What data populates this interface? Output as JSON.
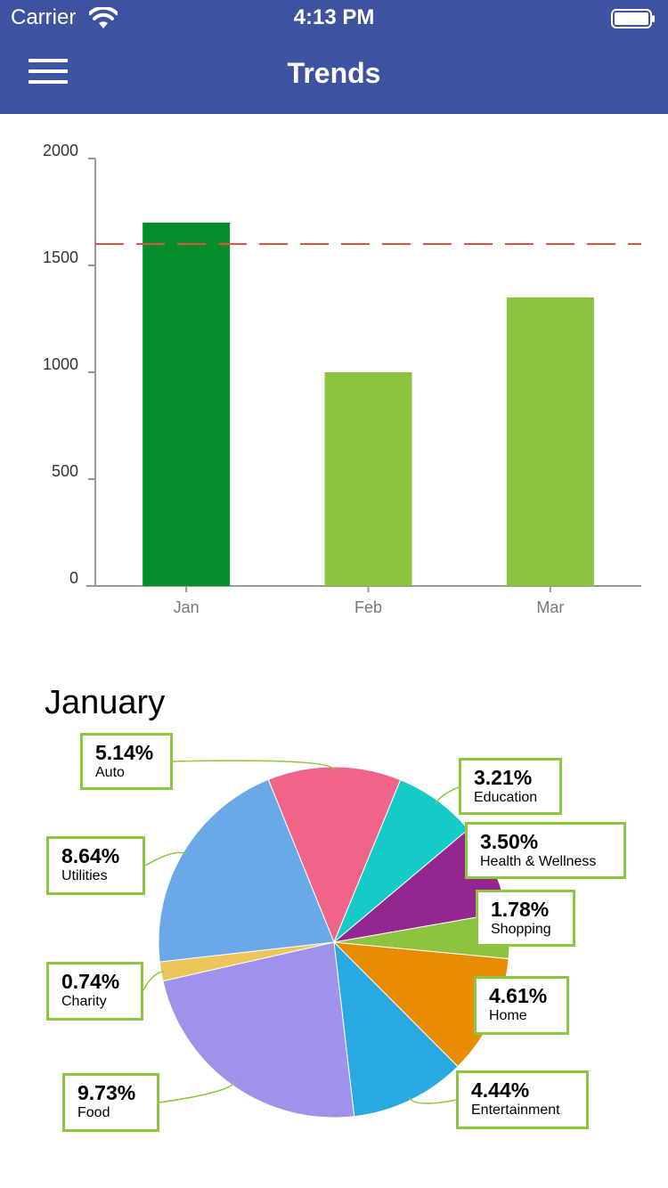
{
  "status_bar": {
    "carrier": "Carrier",
    "time": "4:13 PM"
  },
  "nav": {
    "title": "Trends",
    "menu_icon": "hamburger-menu-icon"
  },
  "section_title": "January",
  "chart_data": [
    {
      "type": "bar",
      "categories": [
        "Jan",
        "Feb",
        "Mar"
      ],
      "values": [
        1700,
        1000,
        1350
      ],
      "bar_colors": [
        "#058e2b",
        "#8cc43f",
        "#8cc43f"
      ],
      "reference_line": {
        "value": 1600,
        "color": "#e0533f"
      },
      "y_ticks": [
        0,
        500,
        1000,
        1500,
        2000
      ],
      "ylim": [
        0,
        2000
      ],
      "title": "",
      "xlabel": "",
      "ylabel": ""
    },
    {
      "type": "pie",
      "title": "January",
      "slices": [
        {
          "name": "Auto",
          "percent": 5.14,
          "label": "5.14%",
          "color": "#f06488"
        },
        {
          "name": "Education",
          "percent": 3.21,
          "label": "3.21%",
          "color": "#14cbc7"
        },
        {
          "name": "Health & Wellness",
          "percent": 3.5,
          "label": "3.50%",
          "color": "#93278f"
        },
        {
          "name": "Shopping",
          "percent": 1.78,
          "label": "1.78%",
          "color": "#8cc43f"
        },
        {
          "name": "Home",
          "percent": 4.61,
          "label": "4.61%",
          "color": "#ea8c00"
        },
        {
          "name": "Entertainment",
          "percent": 4.44,
          "label": "4.44%",
          "color": "#29a9e1"
        },
        {
          "name": "Food",
          "percent": 9.73,
          "label": "9.73%",
          "color": "#9e92ea"
        },
        {
          "name": "Charity",
          "percent": 0.74,
          "label": "0.74%",
          "color": "#ecc65a"
        },
        {
          "name": "Utilities",
          "percent": 8.64,
          "label": "8.64%",
          "color": "#6aa9e8"
        }
      ]
    }
  ]
}
